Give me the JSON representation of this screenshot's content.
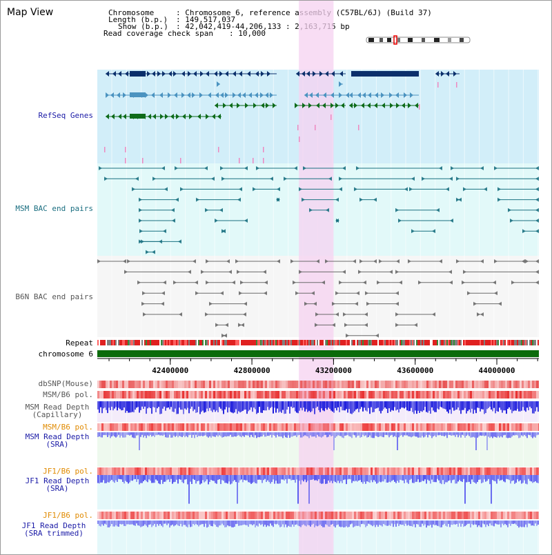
{
  "window": {
    "title": "Map View"
  },
  "assembly": {
    "chromosome_key": "Chromosome",
    "chromosome_val": ": Chromosome 6, reference assembly (C57BL/6J) (Build 37)",
    "length_key": "Length (b.p.)",
    "length_val": ": 149,517,037",
    "show_key": "Show (b.p.)",
    "show_val": ": 42,042,419-44,206,133 : 2,163,715 bp",
    "coverage_key": "Read coverage check span",
    "coverage_val": ": 10,000"
  },
  "tracks": {
    "refseq": "RefSeq Genes",
    "msm_bac": "MSM BAC end pairs",
    "b6n_bac": "B6N BAC end pairs",
    "repeat": "Repeat",
    "chromosome": "chromosome 6",
    "dbsnp": "dbSNP(Mouse)",
    "msm_pol_1": "MSM/B6 pol.",
    "msm_depth_cap_1": "MSM Read Depth",
    "msm_depth_cap_2": "(Capillary)",
    "msm_pol_2": "MSM/B6 pol.",
    "msm_depth_sra_1": "MSM Read Depth",
    "msm_depth_sra_2": "(SRA)",
    "jf1_pol_1": "JF1/B6 pol.",
    "jf1_depth_sra_1": "JF1 Read Depth",
    "jf1_depth_sra_2": "(SRA)",
    "jf1_pol_2": "JF1/B6 pol.",
    "jf1_depth_trim_1": "JF1 Read Depth",
    "jf1_depth_trim_2": "(SRA trimmed)"
  },
  "axis": {
    "ticks": [
      "42400000",
      "42800000",
      "43200000",
      "43600000",
      "44000000"
    ],
    "range_start": 42042419,
    "range_end": 44206133
  },
  "highlight": {
    "start": 43030000,
    "end": 43200000
  },
  "colors": {
    "refseq_bg": "#d2eef9",
    "msm_bg": "#e2f9f9",
    "b6n_bg": "#f6f6f6",
    "highlight": "#f6d2f0",
    "refseq_blue": "#0b2f6b",
    "refseq_mid": "#4b93c0",
    "refseq_green": "#0e6b1a",
    "msm_line": "#197080",
    "b6n_line": "#6a6a6a",
    "chromosome_bar": "#0b6b0b",
    "depth_blue": "#1a1adc",
    "depth_light": "#7070f0",
    "pol_red": "#e84040",
    "label_blue": "#1a1aa6",
    "label_teal": "#1a6e80",
    "label_orange": "#e08a00",
    "label_gray": "#555555"
  }
}
